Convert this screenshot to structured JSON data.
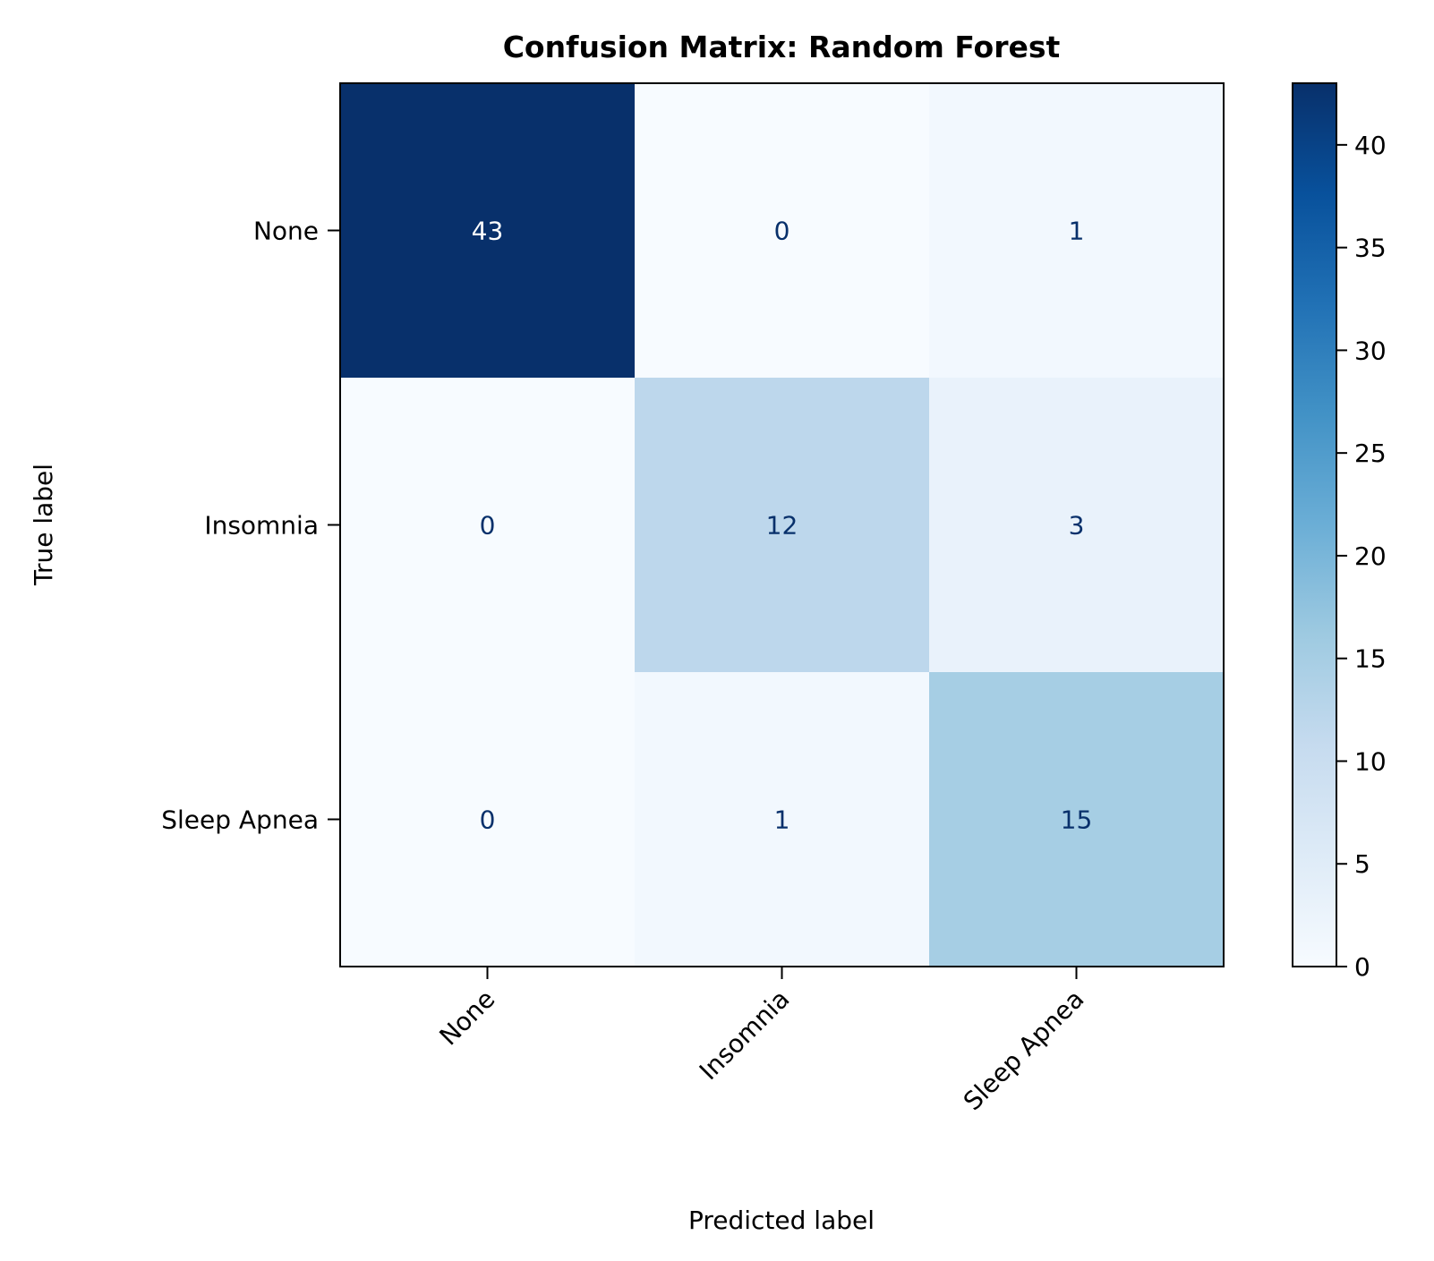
{
  "chart_data": {
    "type": "heatmap",
    "title": "Confusion Matrix: Random Forest",
    "xlabel": "Predicted label",
    "ylabel": "True label",
    "x_categories": [
      "None",
      "Insomnia",
      "Sleep Apnea"
    ],
    "y_categories": [
      "None",
      "Insomnia",
      "Sleep Apnea"
    ],
    "matrix": [
      [
        43,
        0,
        1
      ],
      [
        0,
        12,
        3
      ],
      [
        0,
        1,
        15
      ]
    ],
    "colormap": "Blues",
    "colorbar": {
      "range": [
        0,
        43
      ],
      "ticks": [
        0,
        5,
        10,
        15,
        20,
        25,
        30,
        35,
        40
      ]
    },
    "x_tick_rotation_deg": 45,
    "grid": false
  },
  "colors": {
    "text_on_dark": "#ffffff",
    "text_on_light": "#08306b",
    "frame": "#000000"
  }
}
